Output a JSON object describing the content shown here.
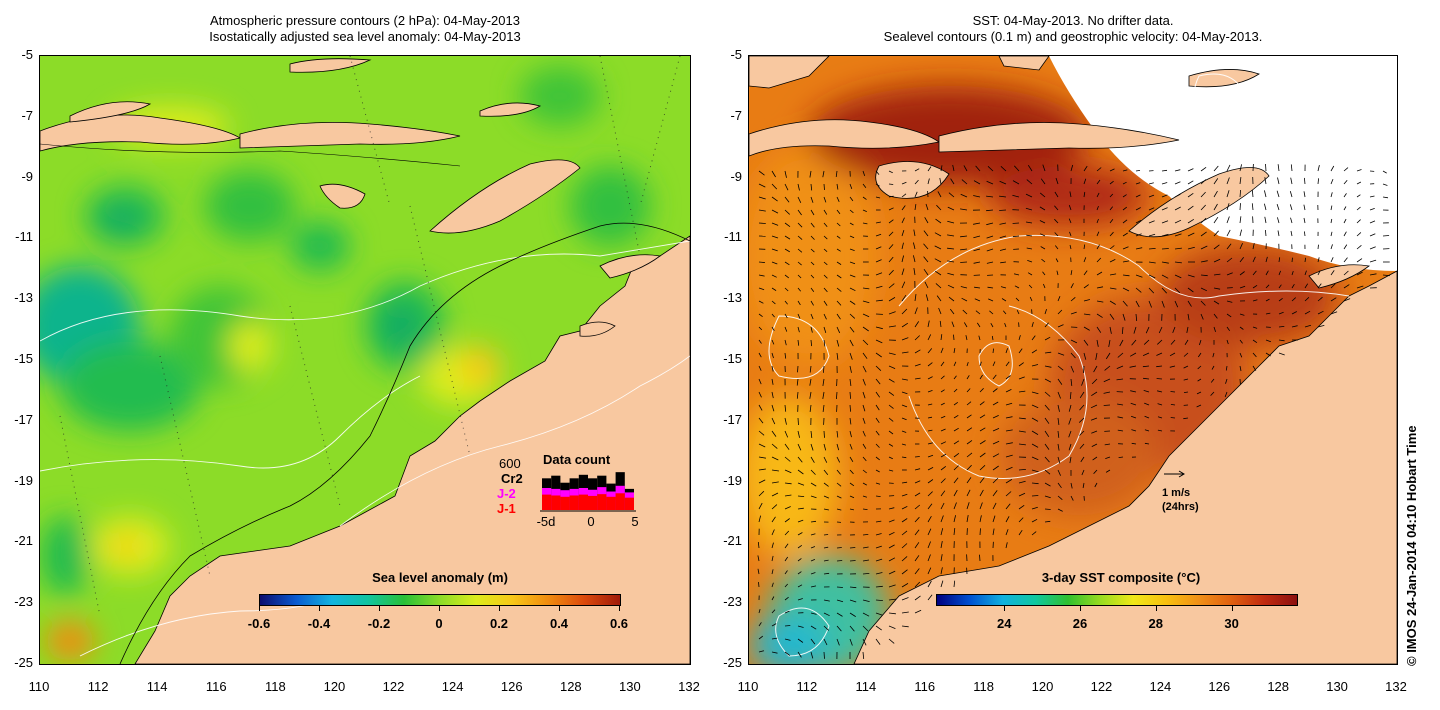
{
  "left_panel": {
    "title_line1": "Atmospheric pressure contours (2 hPa): 04-May-2013",
    "title_line2": "Isostatically adjusted sea level anomaly: 04-May-2013",
    "colorbar": {
      "label": "Sea level anomaly (m)",
      "ticks": [
        "-0.6",
        "-0.4",
        "-0.2",
        "0",
        "0.2",
        "0.4",
        "0.6"
      ],
      "tick_values": [
        -0.6,
        -0.4,
        -0.2,
        0,
        0.2,
        0.4,
        0.6
      ],
      "range": [
        -0.6,
        0.6
      ],
      "colors": [
        "#0c0c6e",
        "#0a5ad0",
        "#12b4e0",
        "#10c4a0",
        "#28c038",
        "#8cdc28",
        "#dcec1c",
        "#f8c818",
        "#f08c10",
        "#dc4a0c",
        "#a01a0a"
      ]
    },
    "data_count": {
      "title": "Data count",
      "scale_label": "600",
      "satellites": [
        {
          "name": "Cr2",
          "color": "#000000"
        },
        {
          "name": "J-2",
          "color": "#ff00ff"
        },
        {
          "name": "J-1",
          "color": "#ff0000"
        }
      ],
      "axis_ticks": [
        "-5d",
        "0",
        "5"
      ],
      "black_tops": [
        0.72,
        0.78,
        0.62,
        0.72,
        0.8,
        0.72,
        0.78,
        0.6,
        0.86,
        0.48
      ],
      "magenta_tops": [
        0.5,
        0.48,
        0.45,
        0.48,
        0.5,
        0.46,
        0.52,
        0.42,
        0.55,
        0.4
      ],
      "red_tops": [
        0.35,
        0.33,
        0.3,
        0.33,
        0.35,
        0.32,
        0.36,
        0.3,
        0.38,
        0.28
      ]
    }
  },
  "right_panel": {
    "title_line1": "SST: 04-May-2013. No drifter data.",
    "title_line2": "Sealevel contours (0.1 m) and geostrophic velocity: 04-May-2013.",
    "colorbar": {
      "label": "3-day SST composite (°C)",
      "ticks": [
        "24",
        "26",
        "28",
        "30"
      ],
      "tick_values": [
        24,
        26,
        28,
        30
      ],
      "range": [
        22.2,
        31.7
      ],
      "colors": [
        "#000080",
        "#0050d0",
        "#10b0e0",
        "#10c8a0",
        "#30c030",
        "#98dc20",
        "#f0e818",
        "#f8c010",
        "#f09018",
        "#e06010",
        "#c02a10",
        "#8c1010"
      ]
    },
    "velocity_legend": {
      "label": "1 m/s",
      "sublabel": "(24hrs)"
    }
  },
  "axes": {
    "lat_ticks": [
      "-5",
      "-7",
      "-9",
      "-11",
      "-13",
      "-15",
      "-17",
      "-19",
      "-21",
      "-23",
      "-25"
    ],
    "lat_values": [
      -5,
      -7,
      -9,
      -11,
      -13,
      -15,
      -17,
      -19,
      -21,
      -23,
      -25
    ],
    "lon_ticks": [
      "110",
      "112",
      "114",
      "116",
      "118",
      "120",
      "122",
      "124",
      "126",
      "128",
      "130",
      "132"
    ],
    "lon_values": [
      110,
      112,
      114,
      116,
      118,
      120,
      122,
      124,
      126,
      128,
      130,
      132
    ]
  },
  "credit": "© IMOS 24-Jan-2014 04:10 Hobart Time",
  "colors": {
    "land": "#f8c8a0",
    "coast": "#000000",
    "sla_base": "#8cdc28",
    "sst_base": "#e87c14",
    "contour": "#ffffff"
  }
}
